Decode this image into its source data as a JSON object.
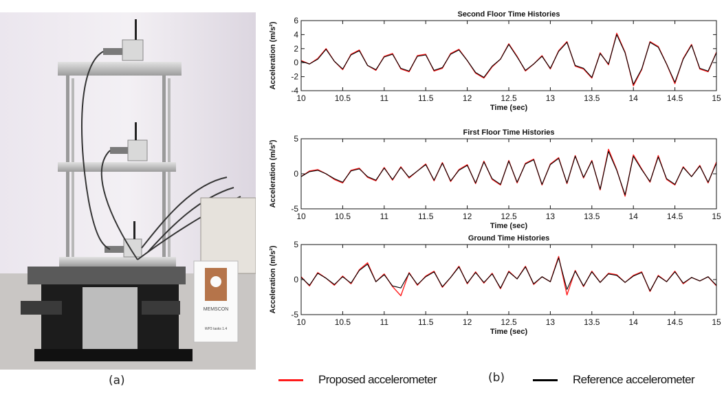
{
  "figure": {
    "caption_a": "(a)",
    "caption_b": "(b)",
    "colors": {
      "proposed": "#ff1a1a",
      "reference": "#000000"
    }
  },
  "photo": {
    "description_icons": [
      "shake-table",
      "three-storey-frame",
      "wireless-sensor-node"
    ],
    "sign": {
      "text": "MEMSCON",
      "subtext": "WP3 tasks 1.4"
    }
  },
  "legend": {
    "proposed_label": "Proposed accelerometer",
    "reference_label": "Reference accelerometer"
  },
  "chart_data": [
    {
      "type": "line",
      "title": "Second Floor Time Histories",
      "xlabel": "Time (sec)",
      "ylabel": "Acceleration (m/s²)",
      "xlim": [
        10,
        15
      ],
      "ylim": [
        -4,
        6
      ],
      "xticks": [
        10,
        10.5,
        11,
        11.5,
        12,
        12.5,
        13,
        13.5,
        14,
        14.5,
        15
      ],
      "yticks": [
        -4,
        -2,
        0,
        2,
        4,
        6
      ],
      "x": [
        10.0,
        10.1,
        10.2,
        10.3,
        10.4,
        10.5,
        10.6,
        10.7,
        10.8,
        10.9,
        11.0,
        11.1,
        11.2,
        11.3,
        11.4,
        11.5,
        11.6,
        11.7,
        11.8,
        11.9,
        12.0,
        12.1,
        12.2,
        12.3,
        12.4,
        12.5,
        12.6,
        12.7,
        12.8,
        12.9,
        13.0,
        13.1,
        13.2,
        13.3,
        13.4,
        13.5,
        13.6,
        13.7,
        13.8,
        13.9,
        14.0,
        14.1,
        14.2,
        14.3,
        14.4,
        14.5,
        14.6,
        14.7,
        14.8,
        14.9,
        15.0
      ],
      "series": [
        {
          "name": "Proposed accelerometer",
          "values": [
            0.3,
            -0.2,
            0.6,
            2.0,
            0.2,
            -1.0,
            1.2,
            1.8,
            -0.4,
            -1.1,
            0.9,
            1.3,
            -0.9,
            -1.3,
            1.0,
            1.2,
            -1.2,
            -0.8,
            1.3,
            1.9,
            0.3,
            -1.5,
            -2.2,
            -0.6,
            0.5,
            2.7,
            0.9,
            -1.2,
            -0.2,
            1.0,
            -0.9,
            1.7,
            3.0,
            -0.5,
            -0.9,
            -2.2,
            1.4,
            -0.3,
            4.2,
            1.5,
            -3.3,
            -1.0,
            3.0,
            2.3,
            -0.2,
            -3.0,
            0.6,
            2.6,
            -0.9,
            -1.3,
            1.5
          ]
        },
        {
          "name": "Reference accelerometer",
          "values": [
            0.2,
            -0.2,
            0.5,
            1.9,
            0.2,
            -0.9,
            1.1,
            1.7,
            -0.4,
            -1.0,
            0.8,
            1.2,
            -0.8,
            -1.2,
            0.9,
            1.1,
            -1.1,
            -0.7,
            1.2,
            1.8,
            0.3,
            -1.4,
            -2.1,
            -0.5,
            0.5,
            2.6,
            0.8,
            -1.1,
            -0.2,
            0.9,
            -0.8,
            1.6,
            2.9,
            -0.4,
            -0.8,
            -2.1,
            1.3,
            -0.2,
            4.0,
            1.4,
            -3.1,
            -0.9,
            2.9,
            2.2,
            -0.2,
            -2.8,
            0.5,
            2.5,
            -0.8,
            -1.2,
            1.4
          ]
        }
      ]
    },
    {
      "type": "line",
      "title": "First Floor Time Histories",
      "xlabel": "Time (sec)",
      "ylabel": "Acceleration (m/s²)",
      "xlim": [
        10,
        15
      ],
      "ylim": [
        -5,
        5
      ],
      "xticks": [
        10,
        10.5,
        11,
        11.5,
        12,
        12.5,
        13,
        13.5,
        14,
        14.5,
        15
      ],
      "yticks": [
        -5,
        0,
        5
      ],
      "x": [
        10.0,
        10.1,
        10.2,
        10.3,
        10.4,
        10.5,
        10.6,
        10.7,
        10.8,
        10.9,
        11.0,
        11.1,
        11.2,
        11.3,
        11.4,
        11.5,
        11.6,
        11.7,
        11.8,
        11.9,
        12.0,
        12.1,
        12.2,
        12.3,
        12.4,
        12.5,
        12.6,
        12.7,
        12.8,
        12.9,
        13.0,
        13.1,
        13.2,
        13.3,
        13.4,
        13.5,
        13.6,
        13.7,
        13.8,
        13.9,
        14.0,
        14.1,
        14.2,
        14.3,
        14.4,
        14.5,
        14.6,
        14.7,
        14.8,
        14.9,
        15.0
      ],
      "series": [
        {
          "name": "Proposed accelerometer",
          "values": [
            -0.4,
            0.4,
            0.6,
            0.0,
            -0.8,
            -1.3,
            0.5,
            0.8,
            -0.5,
            -1.0,
            0.9,
            -0.9,
            1.0,
            -0.6,
            0.4,
            1.4,
            -1.0,
            1.6,
            -1.1,
            0.6,
            1.3,
            -1.4,
            1.8,
            -0.8,
            -1.6,
            1.9,
            -1.3,
            1.5,
            2.1,
            -1.6,
            1.4,
            2.3,
            -1.4,
            2.6,
            -0.6,
            1.9,
            -2.3,
            3.5,
            0.6,
            -3.2,
            2.7,
            0.7,
            -1.2,
            2.6,
            -0.8,
            -1.6,
            1.0,
            -0.4,
            1.2,
            -1.3,
            1.7
          ]
        },
        {
          "name": "Reference accelerometer",
          "values": [
            -0.4,
            0.3,
            0.5,
            0.0,
            -0.7,
            -1.2,
            0.4,
            0.7,
            -0.4,
            -0.9,
            0.8,
            -0.8,
            0.9,
            -0.5,
            0.4,
            1.3,
            -0.9,
            1.5,
            -1.0,
            0.5,
            1.2,
            -1.3,
            1.7,
            -0.7,
            -1.5,
            1.8,
            -1.2,
            1.4,
            2.0,
            -1.5,
            1.3,
            2.2,
            -1.3,
            2.5,
            -0.5,
            1.8,
            -2.2,
            3.2,
            0.5,
            -3.0,
            2.5,
            0.6,
            -1.1,
            2.4,
            -0.7,
            -1.5,
            0.9,
            -0.4,
            1.1,
            -1.2,
            1.5
          ]
        }
      ]
    },
    {
      "type": "line",
      "title": "Ground Time Histories",
      "xlabel": "Time (sec)",
      "ylabel": "Acceleration (m/s²)",
      "xlim": [
        10,
        15
      ],
      "ylim": [
        -5,
        5
      ],
      "xticks": [
        10,
        10.5,
        11,
        11.5,
        12,
        12.5,
        13,
        13.5,
        14,
        14.5,
        15
      ],
      "yticks": [
        -5,
        0,
        5
      ],
      "x": [
        10.0,
        10.1,
        10.2,
        10.3,
        10.4,
        10.5,
        10.6,
        10.7,
        10.8,
        10.9,
        11.0,
        11.1,
        11.2,
        11.3,
        11.4,
        11.5,
        11.6,
        11.7,
        11.8,
        11.9,
        12.0,
        12.1,
        12.2,
        12.3,
        12.4,
        12.5,
        12.6,
        12.7,
        12.8,
        12.9,
        13.0,
        13.1,
        13.2,
        13.3,
        13.4,
        13.5,
        13.6,
        13.7,
        13.8,
        13.9,
        14.0,
        14.1,
        14.2,
        14.3,
        14.4,
        14.5,
        14.6,
        14.7,
        14.8,
        14.9,
        15.0
      ],
      "series": [
        {
          "name": "Proposed accelerometer",
          "values": [
            0.4,
            -0.9,
            1.0,
            0.2,
            -0.8,
            0.5,
            -0.6,
            1.4,
            2.4,
            -0.3,
            0.8,
            -1.0,
            -2.3,
            1.0,
            -0.8,
            0.5,
            1.2,
            -1.1,
            0.3,
            1.9,
            -0.6,
            1.1,
            -0.5,
            0.9,
            -1.3,
            1.2,
            0.1,
            1.9,
            -0.7,
            0.4,
            -0.3,
            3.3,
            -2.2,
            1.3,
            -1.0,
            1.2,
            -0.4,
            0.9,
            0.7,
            -0.4,
            0.6,
            1.1,
            -1.7,
            0.6,
            -0.3,
            1.2,
            -0.6,
            0.3,
            -0.2,
            0.4,
            -0.9
          ]
        },
        {
          "name": "Reference accelerometer",
          "values": [
            0.3,
            -0.8,
            0.9,
            0.2,
            -0.7,
            0.4,
            -0.5,
            1.3,
            2.2,
            -0.3,
            0.7,
            -0.9,
            -1.2,
            0.9,
            -0.7,
            0.4,
            1.1,
            -1.0,
            0.3,
            1.8,
            -0.5,
            1.0,
            -0.4,
            0.8,
            -1.2,
            1.1,
            0.1,
            1.8,
            -0.6,
            0.4,
            -0.3,
            3.1,
            -1.4,
            1.2,
            -0.9,
            1.1,
            -0.4,
            0.8,
            0.6,
            -0.4,
            0.5,
            1.0,
            -1.6,
            0.5,
            -0.3,
            1.1,
            -0.5,
            0.3,
            -0.2,
            0.4,
            -0.8
          ]
        }
      ]
    }
  ]
}
